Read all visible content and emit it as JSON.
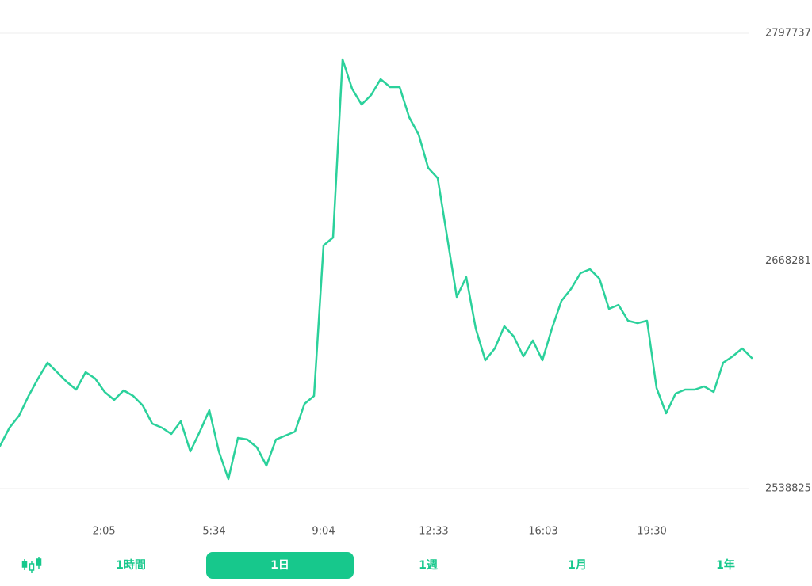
{
  "chart_data": {
    "type": "line",
    "color": "#2bd19b",
    "grid": true,
    "xlim": [
      0,
      79
    ],
    "xticks": [
      {
        "value": 10.92,
        "label": "2:05"
      },
      {
        "value": 22.5,
        "label": "5:34"
      },
      {
        "value": 34,
        "label": "9:04"
      },
      {
        "value": 45.58,
        "label": "12:33"
      },
      {
        "value": 57.08,
        "label": "16:03"
      },
      {
        "value": 68.5,
        "label": "19:30"
      }
    ],
    "ylim": [
      2538825,
      2797737
    ],
    "yticks": [
      2538825,
      2668281,
      2797737
    ],
    "values": [
      2563141,
      2573498,
      2580252,
      2591509,
      2601415,
      2610421,
      2605017,
      2599614,
      2595111,
      2605017,
      2601415,
      2593760,
      2589257,
      2594661,
      2591509,
      2586105,
      2575749,
      2573498,
      2569895,
      2577100,
      2559989,
      2571246,
      2583404,
      2559989,
      2544229,
      2567644,
      2566743,
      2562241,
      2551884,
      2566743,
      2568995,
      2571246,
      2587006,
      2591509,
      2677062,
      2681565,
      2782878,
      2766217,
      2757212,
      2762615,
      2771621,
      2767118,
      2767118,
      2750007,
      2740101,
      2721189,
      2715336,
      2681565,
      2647794,
      2659051,
      2629783,
      2611771,
      2618526,
      2631133,
      2625280,
      2614023,
      2623028,
      2611771,
      2629783,
      2645542,
      2652297,
      2661302,
      2663554,
      2658150,
      2641040,
      2643291,
      2634285,
      2632935,
      2634285,
      2596012,
      2581603,
      2592860,
      2595111,
      2595111,
      2596912,
      2593760,
      2610421,
      2614023,
      2618526,
      2613122
    ]
  },
  "tabs": [
    "1時間",
    "1日",
    "1週",
    "1月",
    "1年"
  ],
  "selected_tab": 1
}
